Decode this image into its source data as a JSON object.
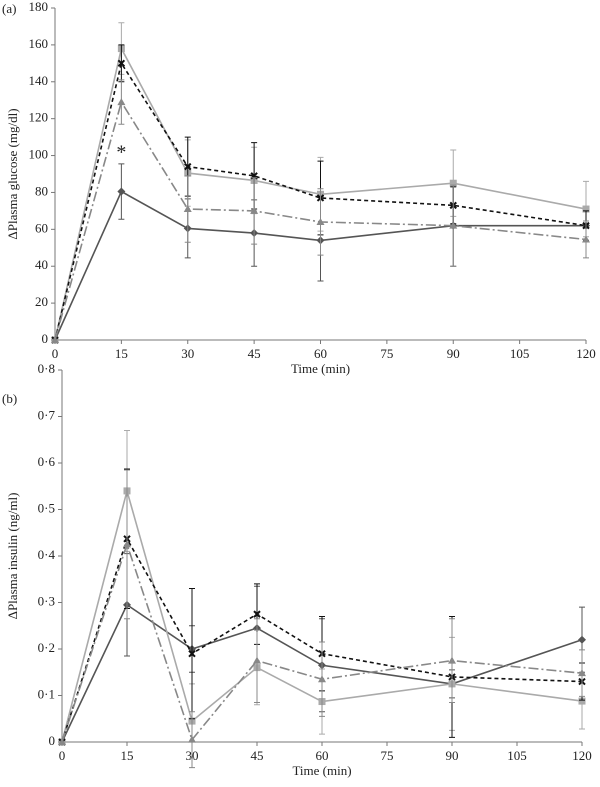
{
  "chart_data": [
    {
      "type": "line",
      "panel_label": "(a)",
      "x_label": "Time (min)",
      "y_label": "ΔPlasma glucose (mg/dl)",
      "x": [
        0,
        15,
        30,
        45,
        60,
        90,
        120
      ],
      "xlim": [
        0,
        120
      ],
      "xticks": [
        0,
        15,
        30,
        45,
        60,
        75,
        90,
        105,
        120
      ],
      "ylim": [
        0,
        180
      ],
      "yticks": [
        0,
        20,
        40,
        60,
        80,
        100,
        120,
        140,
        160,
        180
      ],
      "series": [
        {
          "color": "#555555",
          "marker": "diamond",
          "line_style": "solid",
          "values": [
            0,
            80.5,
            60.5,
            58,
            54,
            62,
            62
          ],
          "errors": [
            0,
            15,
            16,
            18,
            22,
            22,
            8
          ]
        },
        {
          "color": "#aaaaaa",
          "marker": "square",
          "line_style": "solid",
          "values": [
            0,
            158,
            90.5,
            86.5,
            79,
            85,
            71
          ],
          "errors": [
            0,
            14,
            18,
            18,
            20,
            18,
            15
          ]
        },
        {
          "color": "#111111",
          "marker": "cross",
          "line_style": "dashed",
          "values": [
            0,
            150,
            94,
            89,
            77,
            73,
            62
          ],
          "errors": [
            0,
            10,
            16,
            18,
            20,
            10,
            8
          ]
        },
        {
          "color": "#888888",
          "marker": "triangle",
          "line_style": "dashdot",
          "values": [
            0,
            129,
            71,
            70,
            64,
            62,
            54.5
          ],
          "errors": [
            0,
            12,
            18,
            18,
            18,
            22,
            10
          ]
        }
      ],
      "annotations": [
        {
          "text": "*",
          "x": 15,
          "y": 101
        }
      ]
    },
    {
      "type": "line",
      "panel_label": "(b)",
      "x_label": "Time (min)",
      "y_label": "ΔPlasma insulin (ng/ml)",
      "x": [
        0,
        15,
        30,
        45,
        60,
        90,
        120
      ],
      "xlim": [
        0,
        120
      ],
      "xticks": [
        0,
        15,
        30,
        45,
        60,
        75,
        90,
        105,
        120
      ],
      "ylim": [
        0,
        0.8
      ],
      "yticks": [
        0,
        {
          "value": 0.1,
          "label": "0·1"
        },
        {
          "value": 0.2,
          "label": "0·2"
        },
        {
          "value": 0.3,
          "label": "0·3"
        },
        {
          "value": 0.4,
          "label": "0·4"
        },
        {
          "value": 0.5,
          "label": "0·5"
        },
        {
          "value": 0.6,
          "label": "0·6"
        },
        {
          "value": 0.7,
          "label": "0·7"
        },
        {
          "value": 0.8,
          "label": "0·8"
        }
      ],
      "series": [
        {
          "color": "#555555",
          "marker": "diamond",
          "line_style": "solid",
          "values": [
            0,
            0.295,
            0.2,
            0.245,
            0.165,
            0.125,
            0.22
          ],
          "errors": [
            0,
            0.11,
            0.05,
            0.09,
            0.1,
            0.03,
            0.07
          ]
        },
        {
          "color": "#aaaaaa",
          "marker": "square",
          "line_style": "solid",
          "values": [
            0,
            0.54,
            0.045,
            0.16,
            0.087,
            0.125,
            0.088
          ],
          "errors": [
            0,
            0.13,
            0.08,
            0.08,
            0.07,
            0.1,
            0.06
          ]
        },
        {
          "color": "#111111",
          "marker": "cross",
          "line_style": "dashed",
          "values": [
            0,
            0.437,
            0.19,
            0.275,
            0.19,
            0.14,
            0.13
          ],
          "errors": [
            0,
            0.15,
            0.14,
            0.065,
            0.08,
            0.13,
            0.04
          ]
        },
        {
          "color": "#888888",
          "marker": "triangle",
          "line_style": "dashdot",
          "values": [
            0,
            0.425,
            0.005,
            0.175,
            0.135,
            0.175,
            0.148
          ],
          "errors": [
            0,
            0.16,
            0.06,
            0.09,
            0.08,
            0.09,
            0.05
          ]
        }
      ]
    }
  ]
}
